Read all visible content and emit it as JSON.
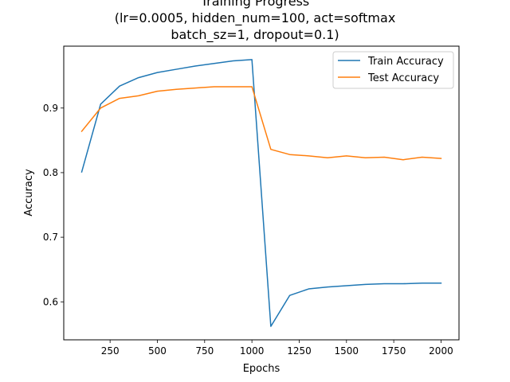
{
  "chart_data": {
    "type": "line",
    "title_lines": [
      "Training Progress",
      "(lr=0.0005, hidden_num=100, act=softmax",
      "batch_sz=1, dropout=0.1)"
    ],
    "xlabel": "Epochs",
    "ylabel": "Accuracy",
    "x": [
      100,
      200,
      300,
      400,
      500,
      600,
      700,
      800,
      900,
      1000,
      1100,
      1200,
      1300,
      1400,
      1500,
      1600,
      1700,
      1800,
      1900,
      2000
    ],
    "series": [
      {
        "name": "Train Accuracy",
        "color": "#1f77b4",
        "values": [
          0.801,
          0.906,
          0.934,
          0.947,
          0.955,
          0.96,
          0.965,
          0.969,
          0.973,
          0.975,
          0.562,
          0.61,
          0.62,
          0.623,
          0.625,
          0.627,
          0.628,
          0.628,
          0.629,
          0.629
        ]
      },
      {
        "name": "Test Accuracy",
        "color": "#ff7f0e",
        "values": [
          0.864,
          0.9,
          0.915,
          0.919,
          0.926,
          0.929,
          0.931,
          0.933,
          0.933,
          0.933,
          0.836,
          0.828,
          0.826,
          0.823,
          0.826,
          0.823,
          0.824,
          0.82,
          0.824,
          0.822
        ]
      }
    ],
    "xlim": [
      5,
      2095
    ],
    "ylim": [
      0.5412,
      0.9958
    ],
    "xticks": [
      250,
      500,
      750,
      1000,
      1250,
      1500,
      1750,
      2000
    ],
    "yticks": [
      0.6,
      0.7,
      0.8,
      0.9
    ],
    "xtick_labels": [
      "250",
      "500",
      "750",
      "1000",
      "1250",
      "1500",
      "1750",
      "2000"
    ],
    "ytick_labels": [
      "0.6",
      "0.7",
      "0.8",
      "0.9"
    ],
    "legend_position": "upper right",
    "grid": false
  }
}
